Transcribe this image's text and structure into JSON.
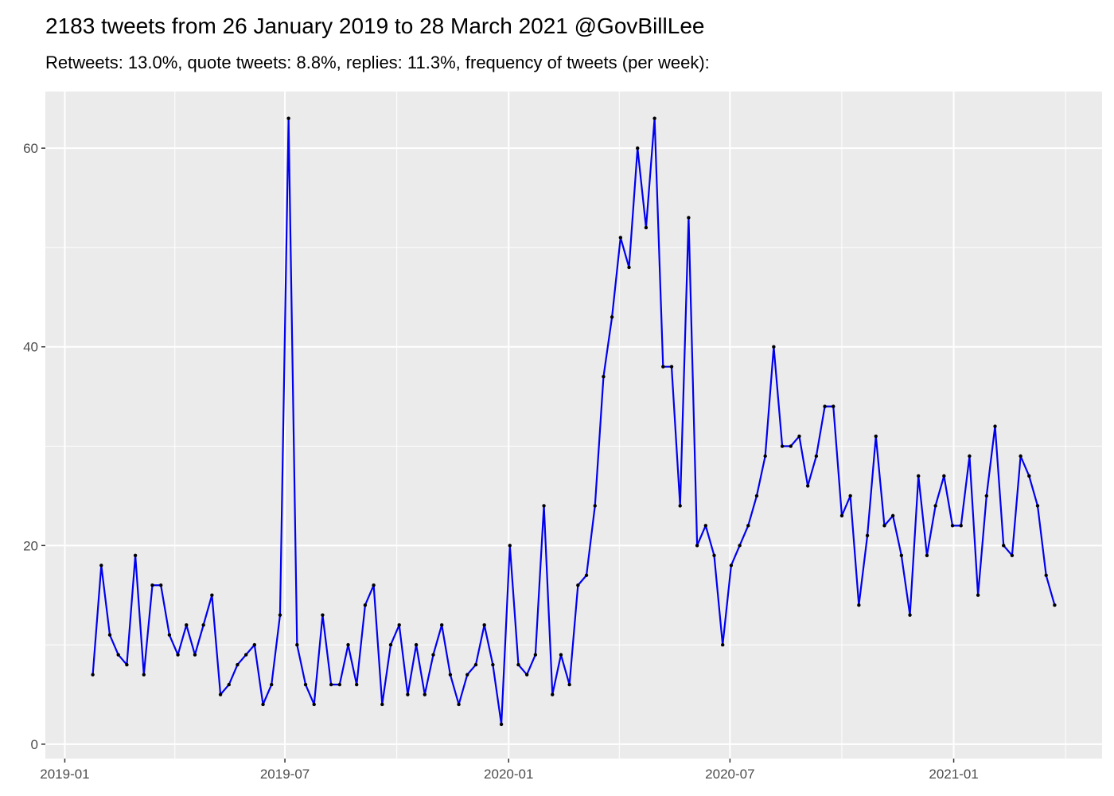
{
  "chart_data": {
    "type": "line",
    "title": "2183 tweets from 26 January 2019 to 28 March 2021 @GovBillLee",
    "subtitle": "Retweets: 13.0%, quote tweets: 8.8%, replies: 11.3%, frequency of tweets (per week):",
    "x": [
      "2019-01-24",
      "2019-01-31",
      "2019-02-07",
      "2019-02-14",
      "2019-02-21",
      "2019-02-28",
      "2019-03-07",
      "2019-03-14",
      "2019-03-21",
      "2019-03-28",
      "2019-04-04",
      "2019-04-11",
      "2019-04-18",
      "2019-04-25",
      "2019-05-02",
      "2019-05-09",
      "2019-05-16",
      "2019-05-23",
      "2019-05-30",
      "2019-06-06",
      "2019-06-13",
      "2019-06-20",
      "2019-06-27",
      "2019-07-04",
      "2019-07-11",
      "2019-07-18",
      "2019-07-25",
      "2019-08-01",
      "2019-08-08",
      "2019-08-15",
      "2019-08-22",
      "2019-08-29",
      "2019-09-05",
      "2019-09-12",
      "2019-09-19",
      "2019-09-26",
      "2019-10-03",
      "2019-10-10",
      "2019-10-17",
      "2019-10-24",
      "2019-10-31",
      "2019-11-07",
      "2019-11-14",
      "2019-11-21",
      "2019-11-28",
      "2019-12-05",
      "2019-12-12",
      "2019-12-19",
      "2019-12-26",
      "2020-01-02",
      "2020-01-09",
      "2020-01-16",
      "2020-01-23",
      "2020-01-30",
      "2020-02-06",
      "2020-02-13",
      "2020-02-20",
      "2020-02-27",
      "2020-03-05",
      "2020-03-12",
      "2020-03-19",
      "2020-03-26",
      "2020-04-02",
      "2020-04-09",
      "2020-04-16",
      "2020-04-23",
      "2020-04-30",
      "2020-05-07",
      "2020-05-14",
      "2020-05-21",
      "2020-05-28",
      "2020-06-04",
      "2020-06-11",
      "2020-06-18",
      "2020-06-25",
      "2020-07-02",
      "2020-07-09",
      "2020-07-16",
      "2020-07-23",
      "2020-07-30",
      "2020-08-06",
      "2020-08-13",
      "2020-08-20",
      "2020-08-27",
      "2020-09-03",
      "2020-09-10",
      "2020-09-17",
      "2020-09-24",
      "2020-10-01",
      "2020-10-08",
      "2020-10-15",
      "2020-10-22",
      "2020-10-29",
      "2020-11-05",
      "2020-11-12",
      "2020-11-19",
      "2020-11-26",
      "2020-12-03",
      "2020-12-10",
      "2020-12-17",
      "2020-12-24",
      "2020-12-31",
      "2021-01-07",
      "2021-01-14",
      "2021-01-21",
      "2021-01-28",
      "2021-02-04",
      "2021-02-11",
      "2021-02-18",
      "2021-02-25",
      "2021-03-04",
      "2021-03-11",
      "2021-03-18",
      "2021-03-25"
    ],
    "values": [
      7,
      18,
      11,
      9,
      8,
      19,
      7,
      16,
      16,
      11,
      9,
      12,
      9,
      12,
      15,
      5,
      6,
      8,
      9,
      10,
      4,
      6,
      13,
      63,
      10,
      6,
      4,
      13,
      6,
      6,
      10,
      6,
      14,
      16,
      4,
      10,
      12,
      5,
      10,
      5,
      9,
      12,
      7,
      4,
      7,
      8,
      12,
      8,
      2,
      20,
      8,
      7,
      9,
      24,
      5,
      9,
      6,
      16,
      17,
      24,
      37,
      43,
      51,
      48,
      60,
      52,
      63,
      38,
      38,
      24,
      53,
      20,
      22,
      19,
      10,
      18,
      20,
      22,
      25,
      29,
      40,
      30,
      30,
      31,
      26,
      29,
      34,
      34,
      23,
      25,
      14,
      21,
      31,
      22,
      23,
      19,
      13,
      27,
      19,
      24,
      27,
      22,
      22,
      29,
      15,
      25,
      32,
      20,
      19,
      29,
      27,
      24,
      17,
      14
    ],
    "color": "#0000ee",
    "point_color": "#000000",
    "xlim": [
      "2018-12-16",
      "2021-05-03"
    ],
    "xticks": [
      {
        "value": "2019-01-01",
        "label": "2019-01"
      },
      {
        "value": "2019-07-01",
        "label": "2019-07"
      },
      {
        "value": "2020-01-01",
        "label": "2020-01"
      },
      {
        "value": "2020-07-01",
        "label": "2020-07"
      },
      {
        "value": "2021-01-01",
        "label": "2021-01"
      }
    ],
    "ylim": [
      -1.45,
      65.7
    ],
    "yticks": [
      0,
      20,
      40,
      60
    ],
    "grid": true
  }
}
